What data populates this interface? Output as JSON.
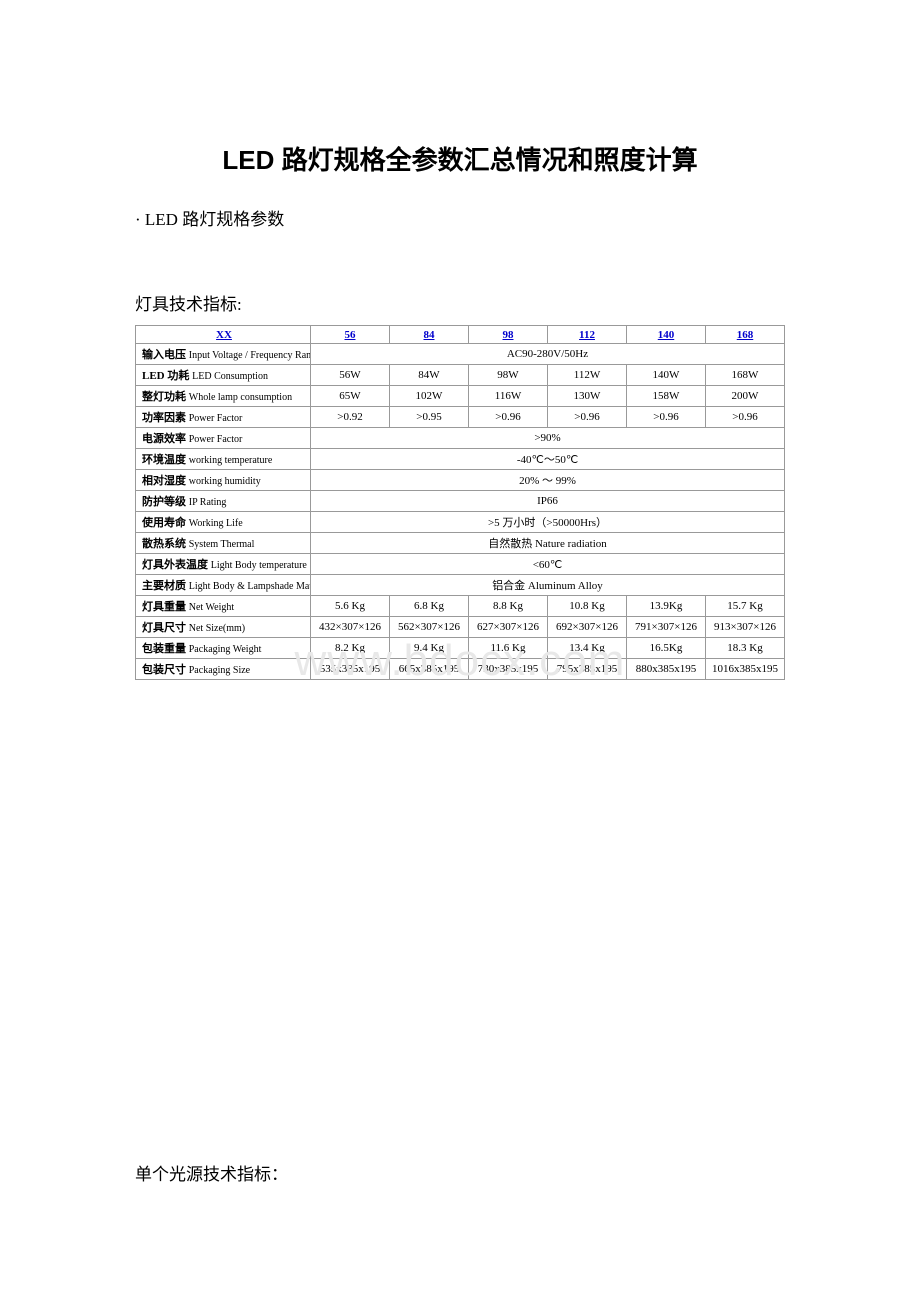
{
  "doc": {
    "title": "LED 路灯规格全参数汇总情况和照度计算",
    "section1": "· LED 路灯规格参数",
    "subsection1": "灯具技术指标:",
    "section2": "单个光源技术指标：",
    "watermark": "www.bdocx.com"
  },
  "table": {
    "headerRow": {
      "label": "XX",
      "cols": [
        "56",
        "84",
        "98",
        "112",
        "140",
        "168"
      ]
    },
    "rows": [
      {
        "zh": "输入电压",
        "en": "Input Voltage / Frequency Range",
        "span": true,
        "val": "AC90-280V/50Hz"
      },
      {
        "zh": "LED 功耗",
        "en": "LED Consumption",
        "vals": [
          "56W",
          "84W",
          "98W",
          "112W",
          "140W",
          "168W"
        ]
      },
      {
        "zh": "整灯功耗",
        "en": "Whole lamp consumption",
        "vals": [
          "65W",
          "102W",
          "116W",
          "130W",
          "158W",
          "200W"
        ]
      },
      {
        "zh": "功率因素",
        "en": "Power Factor",
        "vals": [
          ">0.92",
          ">0.95",
          ">0.96",
          ">0.96",
          ">0.96",
          ">0.96"
        ]
      },
      {
        "zh": "电源效率",
        "en": "Power Factor",
        "span": true,
        "val": ">90%"
      },
      {
        "zh": "环境温度",
        "en": "working temperature",
        "span": true,
        "val": "-40℃～50℃"
      },
      {
        "zh": "相对湿度",
        "en": "working humidity",
        "span": true,
        "val": "20% ～ 99%"
      },
      {
        "zh": "防护等级",
        "en": "IP Rating",
        "span": true,
        "val": "IP66"
      },
      {
        "zh": "使用寿命",
        "en": "Working Life",
        "span": true,
        "val": ">5 万小时（>50000Hrs）"
      },
      {
        "zh": "散热系统",
        "en": "System Thermal",
        "span": true,
        "val": "自然散热 Nature radiation"
      },
      {
        "zh": "灯具外表温度",
        "en": "Light Body temperature",
        "span": true,
        "val": "<60℃"
      },
      {
        "zh": "主要材质",
        "en": "Light Body & Lampshade Material",
        "span": true,
        "val": "铝合金 Aluminum Alloy"
      },
      {
        "zh": "灯具重量",
        "en": "Net Weight",
        "vals": [
          "5.6 Kg",
          "6.8 Kg",
          "8.8 Kg",
          "10.8 Kg",
          "13.9Kg",
          "15.7 Kg"
        ]
      },
      {
        "zh": "灯具尺寸",
        "en": "Net Size(mm)",
        "vals": [
          "432×307×126",
          "562×307×126",
          "627×307×126",
          "692×307×126",
          "791×307×126",
          "913×307×126"
        ]
      },
      {
        "zh": "包装重量",
        "en": "Packaging Weight",
        "vals": [
          "8.2 Kg",
          "9.4 Kg",
          "11.6 Kg",
          "13.4 Kg",
          "16.5Kg",
          "18.3 Kg"
        ]
      },
      {
        "zh": "包装尺寸",
        "en": "Packaging Size",
        "vals": [
          "535x385x195",
          "665x385x195",
          "730x385x195",
          "795x385x195",
          "880x385x195",
          "1016x385x195"
        ]
      }
    ]
  },
  "style": {
    "border_color": "#999999",
    "link_color": "#0000cc",
    "text_color": "#000000",
    "watermark_color": "#e8e8e8",
    "background": "#ffffff",
    "table_fontsize": 11,
    "body_fontsize": 17,
    "title_fontsize": 26
  }
}
